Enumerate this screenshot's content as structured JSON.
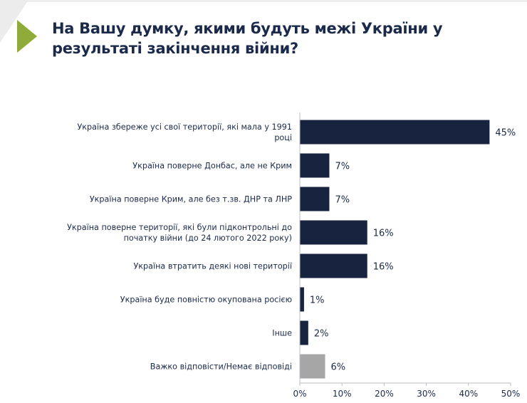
{
  "header": {
    "title": "На Вашу думку, якими будуть межі України у результаті закінчення війни?"
  },
  "colors": {
    "bar": "#17233f",
    "bar_other": "#a6a6a6",
    "accent": "#8fac3a",
    "text": "#1b2a4a"
  },
  "chart_data": {
    "type": "bar",
    "orientation": "horizontal",
    "title": "На Вашу думку, якими будуть межі України у результаті закінчення війни?",
    "categories": [
      [
        "Україна збереже усі свої території, які мала у 1991",
        "році"
      ],
      [
        "Україна поверне Донбас, але не Крим"
      ],
      [
        "Україна поверне Крим, але без т.зв. ДНР та ЛНР"
      ],
      [
        "Україна поверне території, які були підконтрольні до",
        "початку війни (до 24 лютого 2022 року)"
      ],
      [
        "Україна втратить деякі нові території"
      ],
      [
        "Україна буде повністю окупована росією"
      ],
      [
        "Інше"
      ],
      [
        "Важко відповісти/Немає відповіді"
      ]
    ],
    "values": [
      45,
      7,
      7,
      16,
      16,
      1,
      2,
      6
    ],
    "data_labels": [
      "45%",
      "7%",
      "7%",
      "16%",
      "16%",
      "1%",
      "2%",
      "6%"
    ],
    "xlim": [
      0,
      50
    ],
    "xticks": [
      "0%",
      "10%",
      "20%",
      "30%",
      "40%",
      "50%"
    ],
    "grid": false,
    "legend": "none"
  }
}
